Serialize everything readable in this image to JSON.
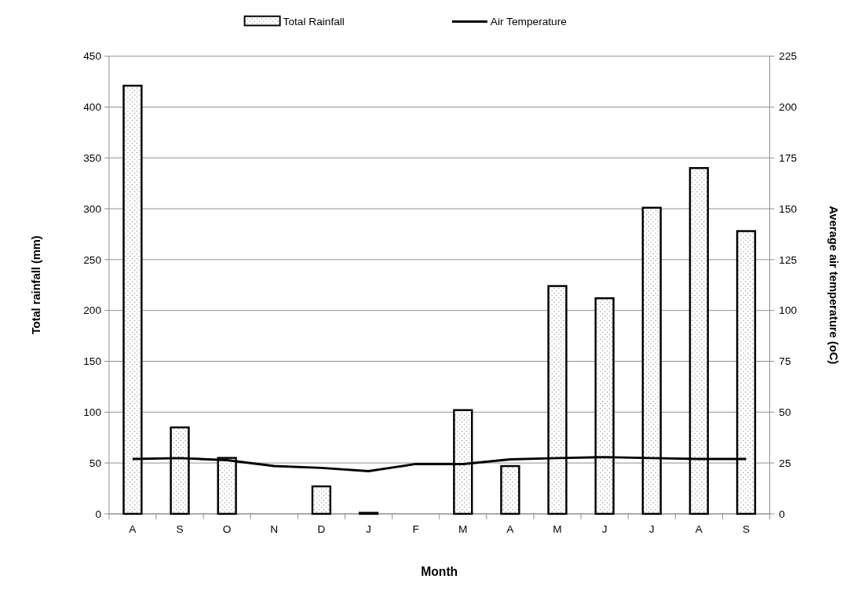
{
  "chart_data": {
    "type": "bar",
    "xlabel": "Month",
    "ylabel": "Total rainfall (mm)",
    "y2label": "Average air temperature (oC)",
    "categories": [
      "A",
      "S",
      "O",
      "N",
      "D",
      "J",
      "F",
      "M",
      "A",
      "M",
      "J",
      "J",
      "A",
      "S"
    ],
    "series": [
      {
        "name": "Total Rainfall",
        "color": "#000000",
        "values": [
          421,
          85,
          55,
          0,
          27,
          1,
          0,
          102,
          47,
          224,
          212,
          301,
          340,
          278
        ]
      },
      {
        "name": "Air Temperature",
        "type": "line",
        "axis": "y2",
        "color": "#000000",
        "values": [
          27,
          27.4,
          26.4,
          23.5,
          22.6,
          21,
          24.5,
          24.5,
          26.8,
          27.4,
          27.9,
          27.4,
          27,
          27
        ]
      }
    ],
    "ylim": [
      0,
      450
    ],
    "yticks": [
      0,
      50,
      100,
      150,
      200,
      250,
      300,
      350,
      400,
      450
    ],
    "y2lim": [
      0,
      225
    ],
    "y2ticks": [
      0,
      25,
      50,
      75,
      100,
      125,
      150,
      175,
      200,
      225
    ],
    "grid": "y",
    "legend": "top",
    "marker": "none",
    "line_style": "solid"
  }
}
